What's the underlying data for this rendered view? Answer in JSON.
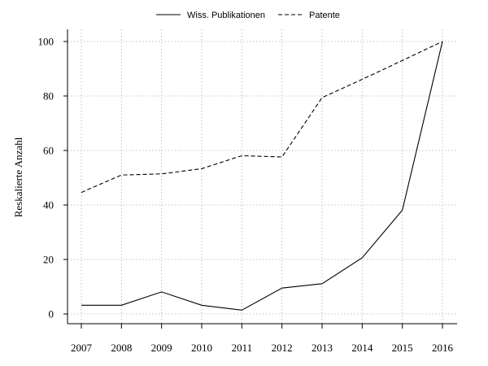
{
  "chart_data": {
    "type": "line",
    "title": "",
    "xlabel": "",
    "ylabel": "Reskalierte Anzahl",
    "x": [
      "2007",
      "2008",
      "2009",
      "2010",
      "2011",
      "2012",
      "2013",
      "2014",
      "2015",
      "2016"
    ],
    "yticks": [
      "0",
      "20",
      "40",
      "60",
      "80",
      "100"
    ],
    "ylim": [
      -4,
      104
    ],
    "grid": true,
    "legend_position": "top",
    "series": [
      {
        "name": "Wiss. Publikationen",
        "style": "solid",
        "color": "#000000",
        "values": [
          3.2,
          3.2,
          8.1,
          3.2,
          1.4,
          9.5,
          11.1,
          20.6,
          38.1,
          100
        ]
      },
      {
        "name": "Patente",
        "style": "dashed",
        "color": "#000000",
        "values": [
          44.6,
          51.0,
          51.4,
          53.3,
          58.1,
          57.6,
          79.4,
          86.1,
          93.0,
          100
        ]
      }
    ]
  }
}
